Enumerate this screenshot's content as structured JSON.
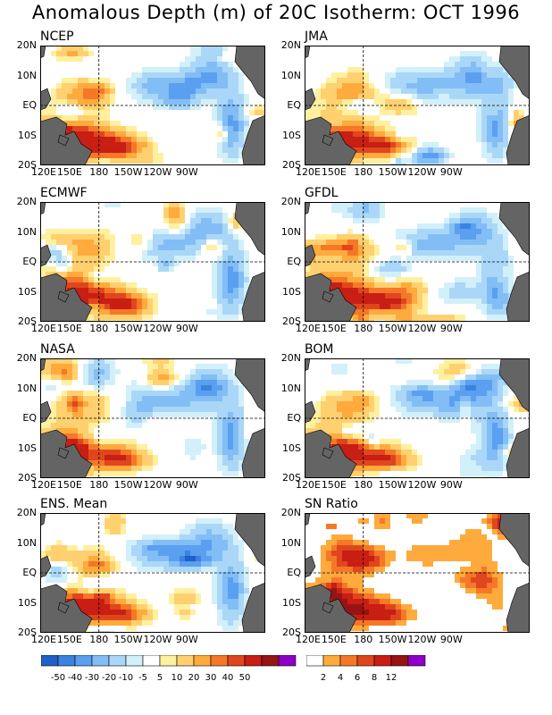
{
  "title": "Anomalous Depth (m) of 20C Isotherm: OCT 1996",
  "chart_data": [
    {
      "type": "heatmap",
      "panel": "NCEP",
      "xlabels": [
        "120E",
        "150E",
        "180",
        "150W",
        "120W",
        "90W"
      ],
      "ylabels": [
        "20N",
        "10N",
        "EQ",
        "10S",
        "20S"
      ],
      "seed": 11
    },
    {
      "type": "heatmap",
      "panel": "JMA",
      "xlabels": [
        "120E",
        "150E",
        "180",
        "150W",
        "120W",
        "90W"
      ],
      "ylabels": [
        "20N",
        "10N",
        "EQ",
        "10S",
        "20S"
      ],
      "seed": 23
    },
    {
      "type": "heatmap",
      "panel": "ECMWF",
      "xlabels": [
        "120E",
        "150E",
        "180",
        "150W",
        "120W",
        "90W"
      ],
      "ylabels": [
        "20N",
        "10N",
        "EQ",
        "10S",
        "20S"
      ],
      "seed": 37
    },
    {
      "type": "heatmap",
      "panel": "GFDL",
      "xlabels": [
        "120E",
        "150E",
        "180",
        "150W",
        "120W",
        "90W"
      ],
      "ylabels": [
        "20N",
        "10N",
        "EQ",
        "10S",
        "20S"
      ],
      "seed": 41
    },
    {
      "type": "heatmap",
      "panel": "NASA",
      "xlabels": [
        "120E",
        "150E",
        "180",
        "150W",
        "120W",
        "90W"
      ],
      "ylabels": [
        "20N",
        "10N",
        "EQ",
        "10S",
        "20S"
      ],
      "seed": 53
    },
    {
      "type": "heatmap",
      "panel": "BOM",
      "xlabels": [
        "120E",
        "150E",
        "180",
        "150W",
        "120W",
        "90W"
      ],
      "ylabels": [
        "20N",
        "10N",
        "EQ",
        "10S",
        "20S"
      ],
      "seed": 67
    },
    {
      "type": "heatmap",
      "panel": "ENS. Mean",
      "xlabels": [
        "120E",
        "150E",
        "180",
        "150W",
        "120W",
        "90W"
      ],
      "ylabels": [
        "20N",
        "10N",
        "EQ",
        "10S",
        "20S"
      ],
      "seed": 79
    },
    {
      "type": "heatmap",
      "panel": "SN Ratio",
      "xlabels": [
        "120E",
        "150E",
        "180",
        "150W",
        "120W",
        "90W"
      ],
      "ylabels": [
        "20N",
        "10N",
        "EQ",
        "10S",
        "20S"
      ],
      "seed": 97
    }
  ],
  "legend_anomaly": {
    "colors": [
      "#1f5fc8",
      "#3c82e0",
      "#5a9ff0",
      "#82bef5",
      "#aad7f7",
      "#d2f0fa",
      "#ffffff",
      "#fff0a0",
      "#ffd070",
      "#ffaa3c",
      "#f57828",
      "#e0461e",
      "#c81e14",
      "#961414",
      "#8c00c8"
    ],
    "labels": [
      "-50",
      "-40",
      "-30",
      "-20",
      "-10",
      "-5",
      "5",
      "10",
      "20",
      "30",
      "40",
      "50"
    ]
  },
  "legend_sn": {
    "colors": [
      "#ffffff",
      "#ffaa3c",
      "#f57828",
      "#e0461e",
      "#c81e14",
      "#961414",
      "#8c00c8"
    ],
    "labels": [
      "2",
      "4",
      "6",
      "8",
      "12"
    ]
  },
  "colors": {
    "land": "#646464",
    "background": "#ffffff"
  }
}
